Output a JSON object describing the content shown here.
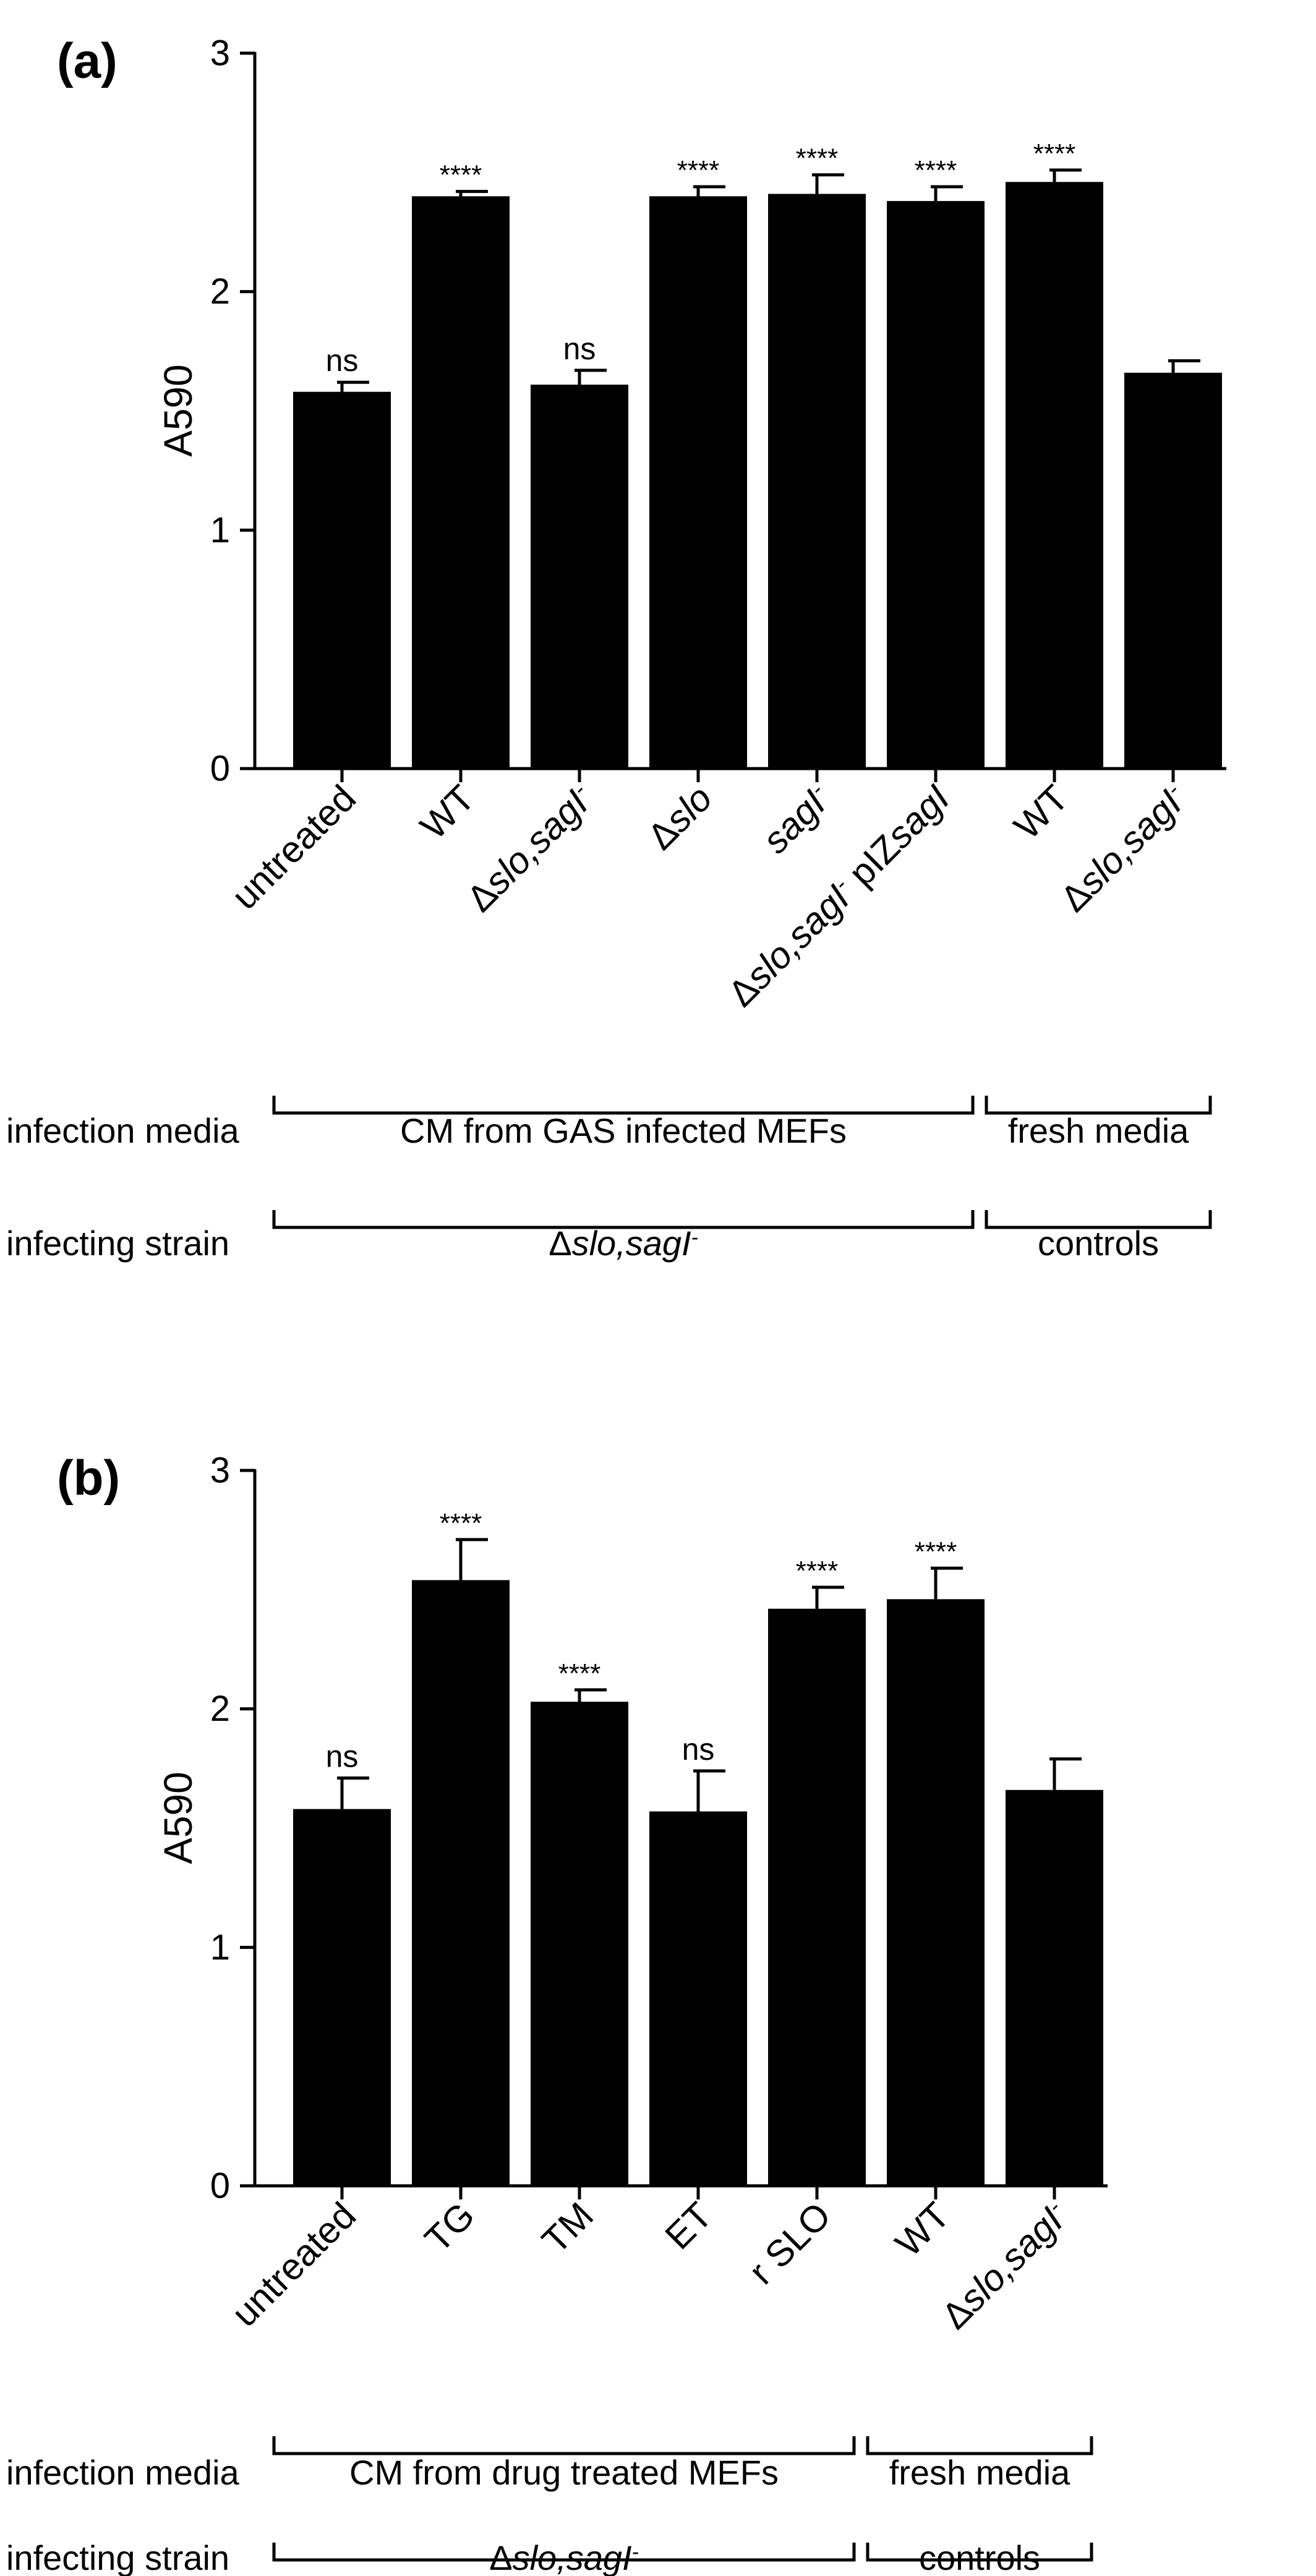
{
  "chart_data": [
    {
      "type": "bar",
      "panel_label": "(a)",
      "ylabel": "A590",
      "ylim": [
        0,
        3
      ],
      "yticks": [
        "0",
        "1",
        "2",
        "3"
      ],
      "grid": false,
      "categories": [
        {
          "parts": [
            {
              "t": "untreated",
              "i": false
            }
          ]
        },
        {
          "parts": [
            {
              "t": "WT",
              "i": false
            }
          ]
        },
        {
          "parts": [
            {
              "t": "Δ",
              "i": false
            },
            {
              "t": "slo,sagI",
              "i": true
            },
            {
              "t": "-",
              "i": true,
              "sup": true
            }
          ]
        },
        {
          "parts": [
            {
              "t": "Δ",
              "i": false
            },
            {
              "t": "slo",
              "i": true
            }
          ]
        },
        {
          "parts": [
            {
              "t": "sagI",
              "i": true
            },
            {
              "t": "-",
              "i": true,
              "sup": true
            }
          ]
        },
        {
          "parts": [
            {
              "t": "Δ",
              "i": false
            },
            {
              "t": "slo,sagI",
              "i": true
            },
            {
              "t": "-",
              "i": true,
              "sup": true
            },
            {
              "t": " pIZ",
              "i": false
            },
            {
              "t": "sagI",
              "i": true
            }
          ]
        },
        {
          "parts": [
            {
              "t": "WT",
              "i": false
            }
          ]
        },
        {
          "parts": [
            {
              "t": "Δ",
              "i": false
            },
            {
              "t": "slo,sagI",
              "i": true
            },
            {
              "t": "-",
              "i": true,
              "sup": true
            }
          ]
        }
      ],
      "values": [
        1.58,
        2.4,
        1.61,
        2.4,
        2.41,
        2.38,
        2.46,
        1.66
      ],
      "errors": [
        0.04,
        0.02,
        0.06,
        0.04,
        0.08,
        0.06,
        0.05,
        0.05
      ],
      "annotations": [
        "ns",
        "****",
        "ns",
        "****",
        "****",
        "****",
        "****",
        ""
      ],
      "groups": {
        "row1": {
          "label": "infection media",
          "items": [
            {
              "label": "CM from GAS infected MEFs",
              "from": 0,
              "to": 5
            },
            {
              "label": "fresh media",
              "from": 6,
              "to": 7
            }
          ]
        },
        "row2": {
          "label": "infecting strain",
          "items": [
            {
              "parts": [
                {
                  "t": "Δ",
                  "i": false
                },
                {
                  "t": "slo,sagI",
                  "i": true
                },
                {
                  "t": "-",
                  "i": true,
                  "sup": true
                }
              ],
              "from": 0,
              "to": 5
            },
            {
              "label": "controls",
              "from": 6,
              "to": 7
            }
          ]
        }
      }
    },
    {
      "type": "bar",
      "panel_label": "(b)",
      "ylabel": "A590",
      "ylim": [
        0,
        3
      ],
      "yticks": [
        "0",
        "1",
        "2",
        "3"
      ],
      "grid": false,
      "categories": [
        {
          "parts": [
            {
              "t": "untreated",
              "i": false
            }
          ]
        },
        {
          "parts": [
            {
              "t": "TG",
              "i": false
            }
          ]
        },
        {
          "parts": [
            {
              "t": "TM",
              "i": false
            }
          ]
        },
        {
          "parts": [
            {
              "t": "ET",
              "i": false
            }
          ]
        },
        {
          "parts": [
            {
              "t": "r SLO",
              "i": false
            }
          ]
        },
        {
          "parts": [
            {
              "t": "WT",
              "i": false
            }
          ]
        },
        {
          "parts": [
            {
              "t": "Δ",
              "i": false
            },
            {
              "t": "slo,sagI",
              "i": true
            },
            {
              "t": "-",
              "i": true,
              "sup": true
            }
          ]
        }
      ],
      "values": [
        1.58,
        2.54,
        2.03,
        1.57,
        2.42,
        2.46,
        1.66
      ],
      "errors": [
        0.13,
        0.17,
        0.05,
        0.17,
        0.09,
        0.13,
        0.13
      ],
      "annotations": [
        "ns",
        "****",
        "****",
        "ns",
        "****",
        "****",
        ""
      ],
      "groups": {
        "row1": {
          "label": "infection media",
          "items": [
            {
              "label": "CM from drug treated MEFs",
              "from": 0,
              "to": 4
            },
            {
              "label": "fresh media",
              "from": 5,
              "to": 6
            }
          ]
        },
        "row2": {
          "label": "infecting strain",
          "items": [
            {
              "parts": [
                {
                  "t": "Δ",
                  "i": false
                },
                {
                  "t": "slo,sagI",
                  "i": true
                },
                {
                  "t": "-",
                  "i": true,
                  "sup": true
                }
              ],
              "from": 0,
              "to": 4
            },
            {
              "label": "controls",
              "from": 5,
              "to": 6
            }
          ]
        }
      }
    }
  ]
}
